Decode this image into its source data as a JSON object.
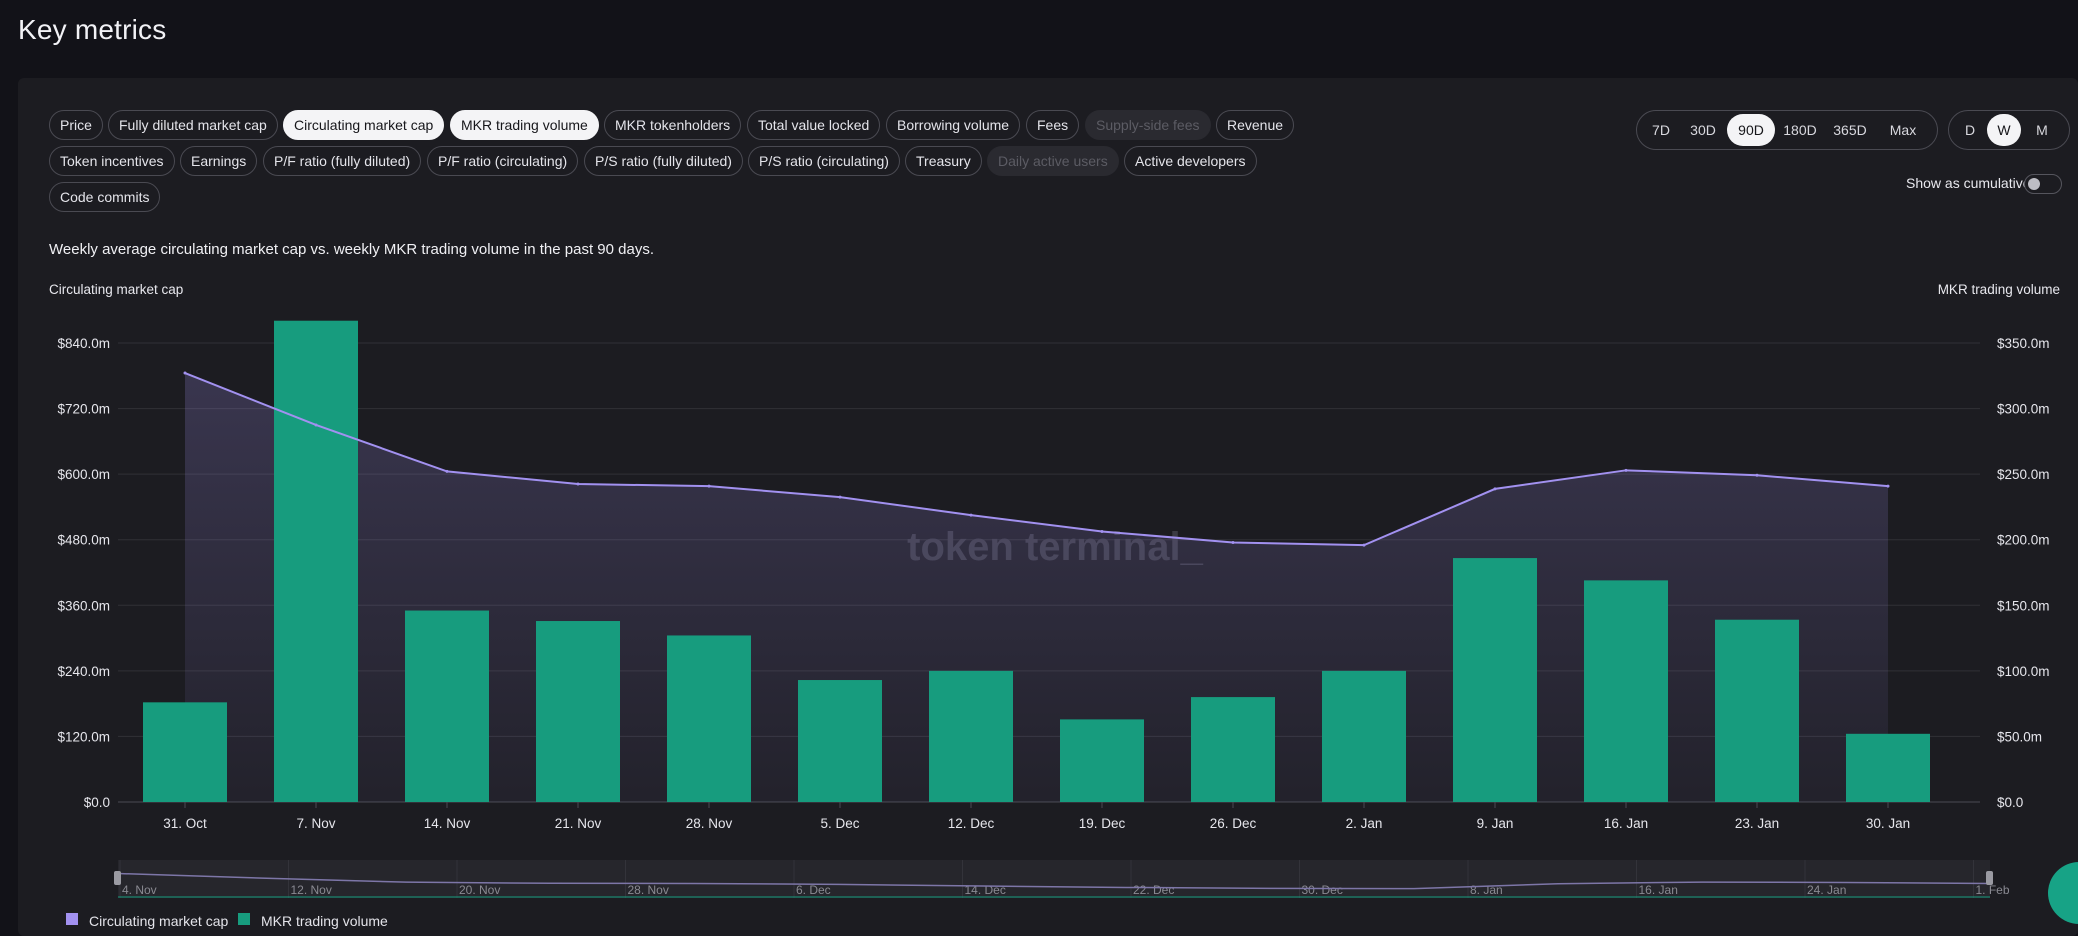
{
  "page_title": "Key metrics",
  "metric_pills": [
    {
      "label": "Price",
      "state": "normal"
    },
    {
      "label": "Fully diluted market cap",
      "state": "normal"
    },
    {
      "label": "Circulating market cap",
      "state": "active"
    },
    {
      "label": "MKR trading volume",
      "state": "active"
    },
    {
      "label": "MKR tokenholders",
      "state": "normal"
    },
    {
      "label": "Total value locked",
      "state": "normal"
    },
    {
      "label": "Borrowing volume",
      "state": "normal"
    },
    {
      "label": "Fees",
      "state": "normal"
    },
    {
      "label": "Supply-side fees",
      "state": "disabled"
    },
    {
      "label": "Revenue",
      "state": "normal"
    },
    {
      "label": "Token incentives",
      "state": "normal"
    },
    {
      "label": "Earnings",
      "state": "normal"
    },
    {
      "label": "P/F ratio (fully diluted)",
      "state": "normal"
    },
    {
      "label": "P/F ratio (circulating)",
      "state": "normal"
    },
    {
      "label": "P/S ratio (fully diluted)",
      "state": "normal"
    },
    {
      "label": "P/S ratio (circulating)",
      "state": "normal"
    },
    {
      "label": "Treasury",
      "state": "normal"
    },
    {
      "label": "Daily active users",
      "state": "disabled"
    },
    {
      "label": "Active developers",
      "state": "normal"
    },
    {
      "label": "Code commits",
      "state": "normal"
    }
  ],
  "range_buttons": [
    {
      "label": "7D",
      "active": false
    },
    {
      "label": "30D",
      "active": false
    },
    {
      "label": "90D",
      "active": true
    },
    {
      "label": "180D",
      "active": false
    },
    {
      "label": "365D",
      "active": false
    },
    {
      "label": "Max",
      "active": false
    }
  ],
  "granularity_buttons": [
    {
      "label": "D",
      "active": false
    },
    {
      "label": "W",
      "active": true
    },
    {
      "label": "M",
      "active": false
    }
  ],
  "cumulative_label": "Show as cumulative",
  "cumulative_enabled": false,
  "chart_description": "Weekly average circulating market cap vs. weekly MKR trading volume in the past 90 days.",
  "watermark": "token terminal_",
  "colors": {
    "line": "#a291f0",
    "bar": "#179c7e",
    "active_pill": "#f4f4f6"
  },
  "chart_data": {
    "type": "bar",
    "categories": [
      "31. Oct",
      "7. Nov",
      "14. Nov",
      "21. Nov",
      "28. Nov",
      "5. Dec",
      "12. Dec",
      "19. Dec",
      "26. Dec",
      "2. Jan",
      "9. Jan",
      "16. Jan",
      "23. Jan",
      "30. Jan"
    ],
    "ylabel_left": "Circulating market cap",
    "ylabel_right": "MKR trading volume",
    "left_axis": {
      "min": 0,
      "max": 840,
      "ticks": [
        0,
        120,
        240,
        360,
        480,
        600,
        720,
        840
      ],
      "tick_labels": [
        "$0.0",
        "$120.0m",
        "$240.0m",
        "$360.0m",
        "$480.0m",
        "$600.0m",
        "$720.0m",
        "$840.0m"
      ]
    },
    "right_axis": {
      "min": 0,
      "max": 350,
      "ticks": [
        0,
        50,
        100,
        150,
        200,
        250,
        300,
        350
      ],
      "tick_labels": [
        "$0.0",
        "$50.0m",
        "$100.0m",
        "$150.0m",
        "$200.0m",
        "$250.0m",
        "$300.0m",
        "$350.0m"
      ]
    },
    "series": [
      {
        "name": "Circulating market cap",
        "kind": "area-line",
        "axis": "left",
        "values": [
          785,
          690,
          605,
          582,
          578,
          558,
          525,
          495,
          475,
          470,
          573,
          607,
          598,
          578
        ]
      },
      {
        "name": "MKR trading volume",
        "kind": "bar",
        "axis": "right",
        "values": [
          76,
          367,
          146,
          138,
          127,
          93,
          100,
          63,
          80,
          100,
          186,
          169,
          139,
          52
        ]
      }
    ],
    "legend_position": "bottom-left",
    "grid": true
  },
  "navigator": {
    "labels": [
      "4. Nov",
      "12. Nov",
      "20. Nov",
      "28. Nov",
      "6. Dec",
      "14. Dec",
      "22. Dec",
      "30. Dec",
      "8. Jan",
      "16. Jan",
      "24. Jan",
      "1. Feb"
    ]
  }
}
